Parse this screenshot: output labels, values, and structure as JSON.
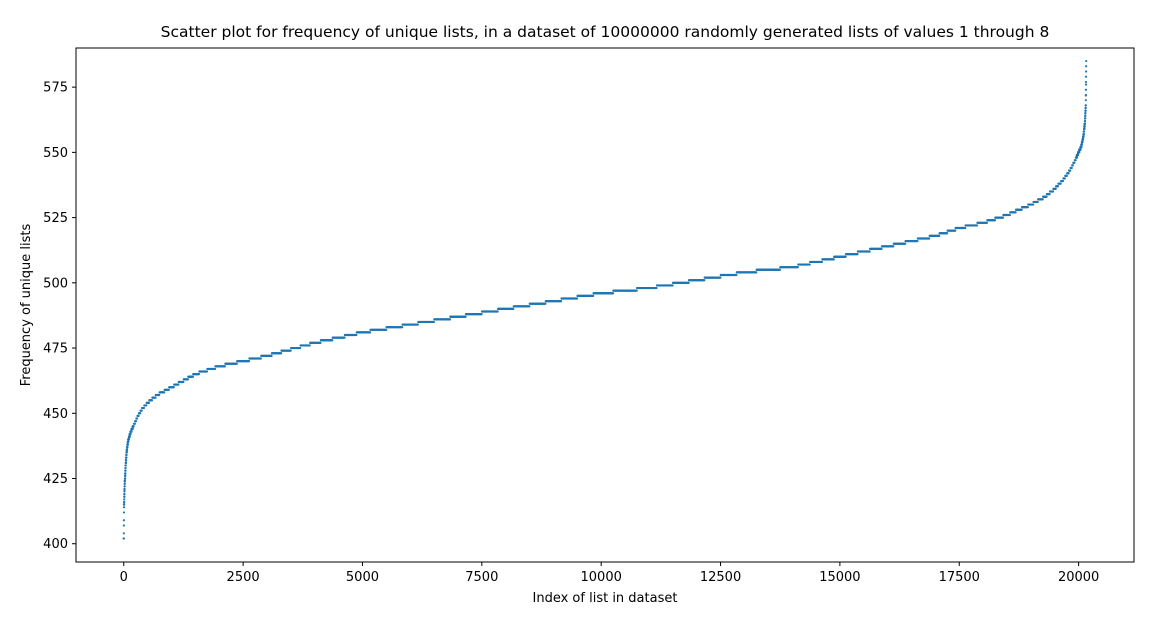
{
  "chart_data": {
    "type": "scatter",
    "title": "Scatter plot for frequency of unique lists, in a dataset of 10000000 randomly generated lists of values 1 through 8",
    "xlabel": "Index of list in dataset",
    "ylabel": "Frequency of unique lists",
    "xlim": [
      -1000,
      21160
    ],
    "ylim": [
      393,
      590
    ],
    "xticks": [
      0,
      2500,
      5000,
      7500,
      10000,
      12500,
      15000,
      17500,
      20000
    ],
    "xtick_labels": [
      "0",
      "2500",
      "5000",
      "7500",
      "10000",
      "12500",
      "15000",
      "17500",
      "20000"
    ],
    "yticks": [
      400,
      425,
      450,
      475,
      500,
      525,
      550,
      575
    ],
    "ytick_labels": [
      "400",
      "425",
      "450",
      "475",
      "500",
      "525",
      "550",
      "575"
    ],
    "grid": false,
    "marker_color": "#1f77b4",
    "n_points": 20160,
    "series": [
      {
        "values_note": "sorted frequencies; approximate anchor points (index, frequency) along the curve",
        "x": [
          0,
          5,
          10,
          20,
          30,
          40,
          60,
          80,
          100,
          150,
          200,
          300,
          400,
          500,
          700,
          1000,
          1500,
          2000,
          2500,
          3000,
          4000,
          5000,
          6000,
          7000,
          8000,
          9000,
          10000,
          11000,
          12000,
          13000,
          14000,
          15000,
          16000,
          17000,
          17500,
          18000,
          18500,
          19000,
          19300,
          19500,
          19700,
          19850,
          19950,
          20050,
          20100,
          20130,
          20150,
          20159
        ],
        "y": [
          402,
          414,
          417,
          423,
          426,
          430,
          435,
          438,
          440,
          443,
          445,
          449,
          452,
          454,
          457,
          460,
          465,
          468,
          470,
          472,
          477,
          481,
          484,
          487,
          490,
          493,
          496,
          498,
          501,
          504,
          506,
          510,
          514,
          518,
          521,
          523,
          526,
          530,
          533,
          536,
          540,
          544,
          548,
          552,
          556,
          561,
          568,
          585
        ]
      }
    ]
  }
}
